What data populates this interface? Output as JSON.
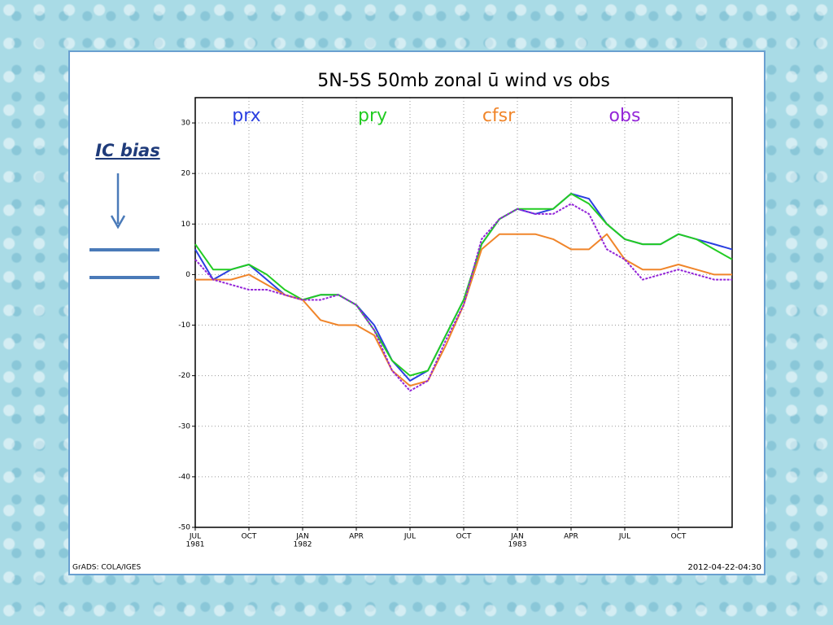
{
  "slide": {
    "annotation": "IC bias"
  },
  "chart_data": {
    "type": "line",
    "title": "5N-5S 50mb zonal ū wind vs obs",
    "footer_left": "GrADS: COLA/IGES",
    "footer_right": "2012-04-22-04:30",
    "x": [
      "1981-07",
      "1981-08",
      "1981-09",
      "1981-10",
      "1981-11",
      "1981-12",
      "1982-01",
      "1982-02",
      "1982-03",
      "1982-04",
      "1982-05",
      "1982-06",
      "1982-07",
      "1982-08",
      "1982-09",
      "1982-10",
      "1982-11",
      "1982-12",
      "1983-01",
      "1983-02",
      "1983-03",
      "1983-04",
      "1983-05",
      "1983-06",
      "1983-07",
      "1983-08",
      "1983-09",
      "1983-10",
      "1983-11",
      "1983-12",
      "1984-01"
    ],
    "xlim": [
      "1981-07",
      "1984-01"
    ],
    "xticks": [
      {
        "value": "1981-07",
        "label": "JUL",
        "sublabel": "1981"
      },
      {
        "value": "1981-10",
        "label": "OCT"
      },
      {
        "value": "1982-01",
        "label": "JAN",
        "sublabel": "1982"
      },
      {
        "value": "1982-04",
        "label": "APR"
      },
      {
        "value": "1982-07",
        "label": "JUL"
      },
      {
        "value": "1982-10",
        "label": "OCT"
      },
      {
        "value": "1983-01",
        "label": "JAN",
        "sublabel": "1983"
      },
      {
        "value": "1983-04",
        "label": "APR"
      },
      {
        "value": "1983-07",
        "label": "JUL"
      },
      {
        "value": "1983-10",
        "label": "OCT"
      }
    ],
    "ylim": [
      -50,
      35
    ],
    "yticks": [
      -50,
      -40,
      -30,
      -20,
      -10,
      0,
      10,
      20,
      30
    ],
    "grid": true,
    "series": [
      {
        "name": "prx",
        "color": "#2a3fe0",
        "values": [
          5,
          -1,
          1,
          2,
          -1,
          -4,
          -5,
          -4,
          -4,
          -6,
          -10,
          -17,
          -21,
          -19,
          -12,
          -5,
          6,
          11,
          13,
          12,
          13,
          16,
          15,
          10,
          7,
          6,
          6,
          8,
          7,
          6,
          5
        ]
      },
      {
        "name": "pry",
        "color": "#22cc22",
        "values": [
          6,
          1,
          1,
          2,
          0,
          -3,
          -5,
          -4,
          -4,
          -6,
          -11,
          -17,
          -20,
          -19,
          -12,
          -5,
          6,
          11,
          13,
          13,
          13,
          16,
          14,
          10,
          7,
          6,
          6,
          8,
          7,
          5,
          3
        ]
      },
      {
        "name": "cfsr",
        "color": "#f0852a",
        "values": [
          -1,
          -1,
          -1,
          0,
          -2,
          -4,
          -5,
          -9,
          -10,
          -10,
          -12,
          -19,
          -22,
          -21,
          -14,
          -6,
          5,
          8,
          8,
          8,
          7,
          5,
          5,
          8,
          3,
          1,
          1,
          2,
          1,
          0,
          0
        ]
      },
      {
        "name": "obs",
        "color": "#9426d8",
        "values": [
          3,
          -1,
          -2,
          -3,
          -3,
          -4,
          -5,
          -5,
          -4,
          -6,
          -11,
          -19,
          -23,
          -21,
          -13,
          -6,
          7,
          11,
          13,
          12,
          12,
          14,
          12,
          5,
          3,
          -1,
          0,
          1,
          0,
          -1,
          -1
        ]
      }
    ]
  }
}
